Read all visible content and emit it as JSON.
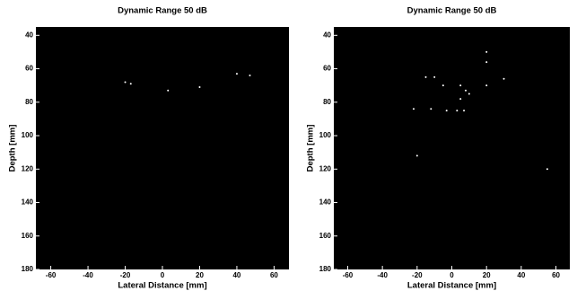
{
  "chart_data": [
    {
      "type": "scatter",
      "title": "Dynamic Range 50 dB",
      "x_label": "Lateral Distance [mm]",
      "y_label": "Depth [mm]",
      "x": [
        -20,
        -17,
        3,
        20,
        40,
        47
      ],
      "y": [
        68,
        69,
        73,
        71,
        63,
        64
      ],
      "color": "#ffffff",
      "xlim": [
        -68,
        68
      ],
      "xticks": [
        -60,
        -40,
        -20,
        0,
        20,
        40,
        60
      ],
      "ylim": [
        35,
        180
      ],
      "yticks": [
        40,
        60,
        80,
        100,
        120,
        140,
        160,
        180
      ],
      "y_reversed": true
    },
    {
      "type": "scatter",
      "title": "Dynamic Range 50 dB",
      "x_label": "Lateral Distance [mm]",
      "y_label": "Depth [mm]",
      "x": [
        20,
        20,
        -15,
        -10,
        -5,
        5,
        8,
        10,
        20,
        30,
        -22,
        -12,
        -3,
        3,
        7,
        5,
        -20,
        55
      ],
      "y": [
        50,
        56,
        65,
        65,
        70,
        70,
        73,
        75,
        70,
        66,
        84,
        84,
        85,
        85,
        85,
        78,
        112,
        120
      ],
      "color": "#ffffff",
      "xlim": [
        -68,
        68
      ],
      "xticks": [
        -60,
        -40,
        -20,
        0,
        20,
        40,
        60
      ],
      "ylim": [
        35,
        180
      ],
      "yticks": [
        40,
        60,
        80,
        100,
        120,
        140,
        160,
        180
      ],
      "y_reversed": true
    }
  ]
}
